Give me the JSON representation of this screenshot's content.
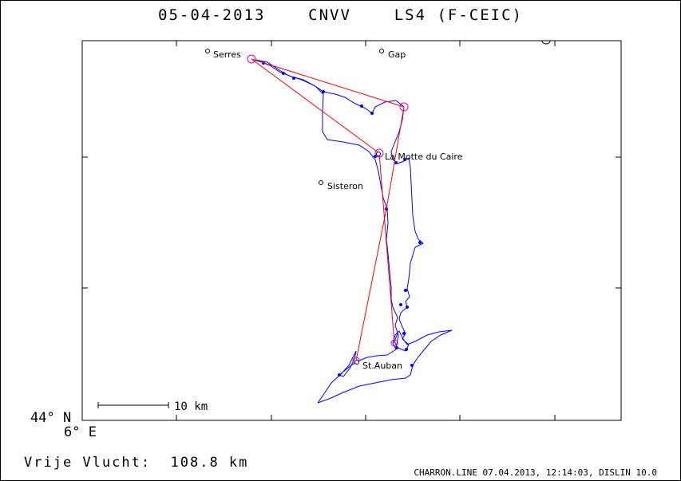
{
  "title": "05-04-2013    CNVV    LS4 (F-CEIC)",
  "coordinates": {
    "latitude": "44° N",
    "longitude": "6° E"
  },
  "scale_bar": {
    "label": "10 km"
  },
  "places": [
    {
      "name": "Serres",
      "key": "serres"
    },
    {
      "name": "Gap",
      "key": "gap"
    },
    {
      "name": "La Motte du Caire",
      "key": "la-motte-du-caire"
    },
    {
      "name": "Sisteron",
      "key": "sisteron"
    },
    {
      "name": "St.Auban",
      "key": "st-auban"
    }
  ],
  "footer": {
    "distance": "Vrije Vlucht:  108.8 km",
    "credit": "CHARRON.LINE 07.04.2013, 12:14:03, DISLIN 10.0"
  },
  "colors": {
    "track": "#0000ff",
    "task": "#ff0000",
    "turnpoint": "#cc00cc",
    "ink": "#000000"
  }
}
